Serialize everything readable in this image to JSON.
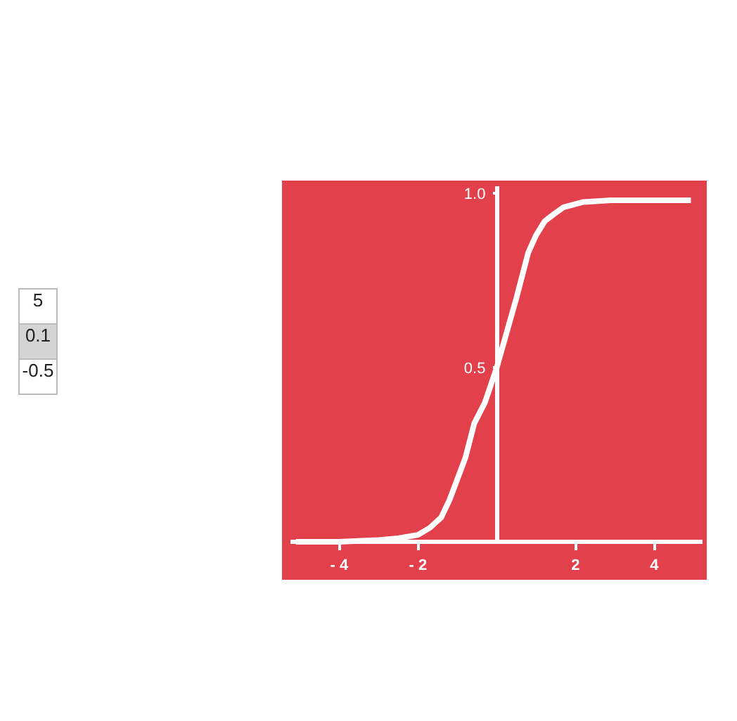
{
  "chart_data": {
    "type": "line",
    "x": [
      -5.1,
      -4,
      -3,
      -2.5,
      -2,
      -1.7,
      -1.41,
      -1.2,
      -1.0,
      -0.8,
      -0.57,
      -0.3,
      0,
      0.25,
      0.5,
      0.8,
      1.0,
      1.22,
      1.45,
      1.7,
      2.2,
      2.9,
      4.93
    ],
    "series": [
      {
        "color": "#ffffff",
        "values": [
          0.0,
          0.0,
          0.005,
          0.01,
          0.02,
          0.04,
          0.07,
          0.12,
          0.18,
          0.24,
          0.34,
          0.4,
          0.5,
          0.6,
          0.7,
          0.83,
          0.88,
          0.92,
          0.94,
          0.96,
          0.975,
          0.98,
          0.98
        ]
      }
    ],
    "xlim": [
      -5.24,
      5.24
    ],
    "ylim": [
      0,
      1.02
    ],
    "xticks": [
      {
        "value": -4,
        "label": "- 4"
      },
      {
        "value": -2,
        "label": "- 2"
      },
      2,
      4
    ],
    "yticks": [
      0.5,
      {
        "value": 1.0,
        "label": "1.0"
      }
    ],
    "annotations": [
      "5",
      "0.1",
      "-0.5"
    ],
    "line_style": "solid"
  }
}
